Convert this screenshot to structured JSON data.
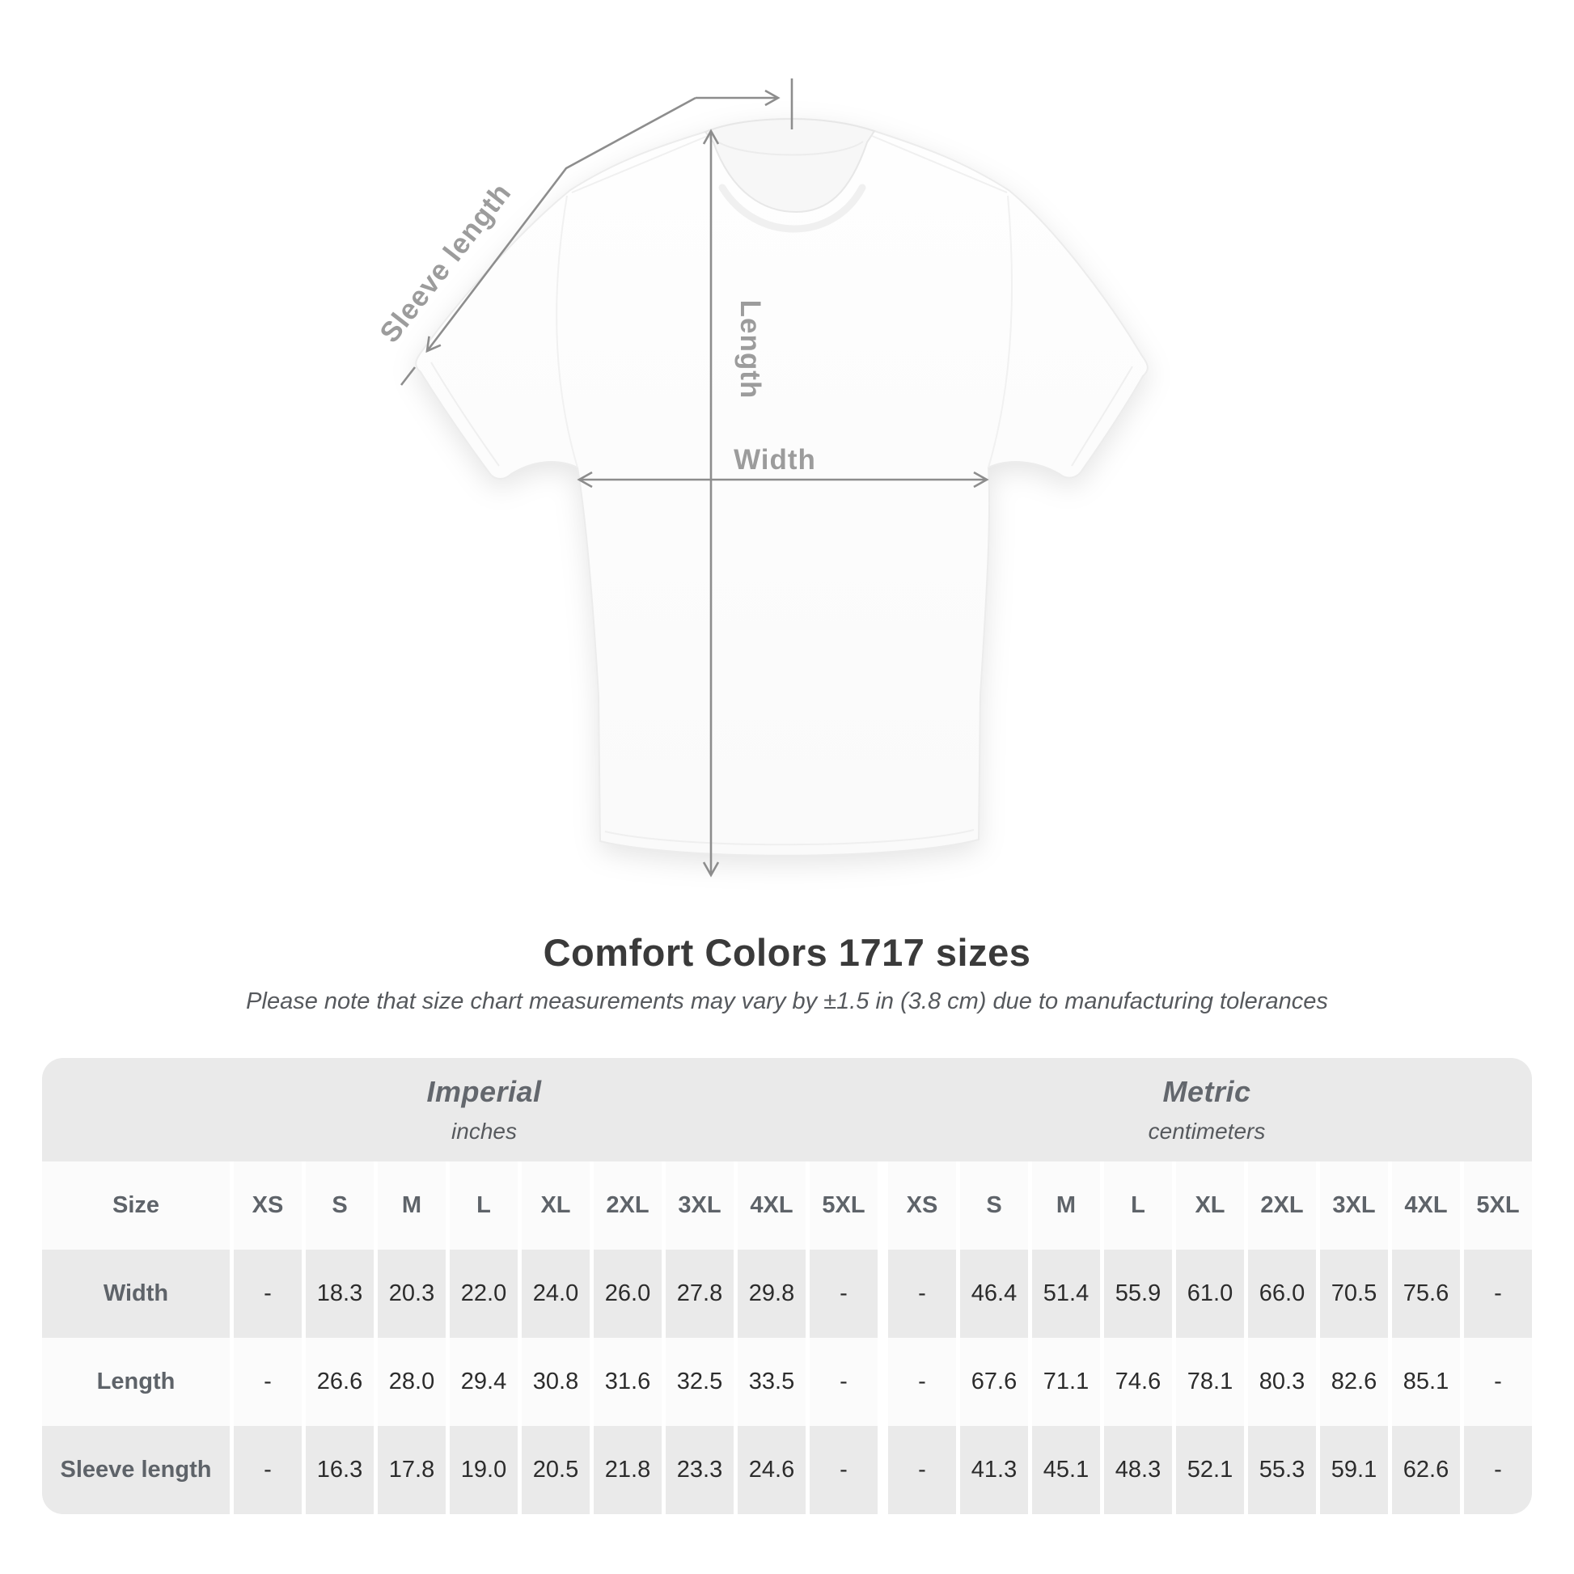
{
  "diagram": {
    "sleeve_length_label": "Sleeve length",
    "length_label": "Length",
    "width_label": "Width",
    "annotation_line_color": "#8d8d8d",
    "annotation_text_color": "#9c9c9c"
  },
  "header": {
    "title": "Comfort Colors 1717 sizes",
    "subtitle": "Please note that size chart measurements may vary by ±1.5 in (3.8 cm) due to manufacturing tolerances"
  },
  "table": {
    "groups": [
      {
        "label": "Imperial",
        "sublabel": "inches"
      },
      {
        "label": "Metric",
        "sublabel": "centimeters"
      }
    ],
    "size_header": "Size",
    "sizes": [
      "XS",
      "S",
      "M",
      "L",
      "XL",
      "2XL",
      "3XL",
      "4XL",
      "5XL"
    ],
    "rows": [
      {
        "label": "Width",
        "imperial": [
          "-",
          "18.3",
          "20.3",
          "22.0",
          "24.0",
          "26.0",
          "27.8",
          "29.8",
          "-"
        ],
        "metric": [
          "-",
          "46.4",
          "51.4",
          "55.9",
          "61.0",
          "66.0",
          "70.5",
          "75.6",
          "-"
        ]
      },
      {
        "label": "Length",
        "imperial": [
          "-",
          "26.6",
          "28.0",
          "29.4",
          "30.8",
          "31.6",
          "32.5",
          "33.5",
          "-"
        ],
        "metric": [
          "-",
          "67.6",
          "71.1",
          "74.6",
          "78.1",
          "80.3",
          "82.6",
          "85.1",
          "-"
        ]
      },
      {
        "label": "Sleeve length",
        "imperial": [
          "-",
          "16.3",
          "17.8",
          "19.0",
          "20.5",
          "21.8",
          "23.3",
          "24.6",
          "-"
        ],
        "metric": [
          "-",
          "41.3",
          "45.1",
          "48.3",
          "52.1",
          "55.3",
          "59.1",
          "62.6",
          "-"
        ]
      }
    ]
  },
  "chart_data": {
    "type": "table",
    "title": "Comfort Colors 1717 sizes",
    "note": "Measurements may vary by ±1.5 in (3.8 cm) due to manufacturing tolerances",
    "column_groups": [
      "Imperial (inches)",
      "Metric (centimeters)"
    ],
    "sizes": [
      "XS",
      "S",
      "M",
      "L",
      "XL",
      "2XL",
      "3XL",
      "4XL",
      "5XL"
    ],
    "measurements": [
      {
        "name": "Width",
        "imperial_in": [
          null,
          18.3,
          20.3,
          22.0,
          24.0,
          26.0,
          27.8,
          29.8,
          null
        ],
        "metric_cm": [
          null,
          46.4,
          51.4,
          55.9,
          61.0,
          66.0,
          70.5,
          75.6,
          null
        ]
      },
      {
        "name": "Length",
        "imperial_in": [
          null,
          26.6,
          28.0,
          29.4,
          30.8,
          31.6,
          32.5,
          33.5,
          null
        ],
        "metric_cm": [
          null,
          67.6,
          71.1,
          74.6,
          78.1,
          80.3,
          82.6,
          85.1,
          null
        ]
      },
      {
        "name": "Sleeve length",
        "imperial_in": [
          null,
          16.3,
          17.8,
          19.0,
          20.5,
          21.8,
          23.3,
          24.6,
          null
        ],
        "metric_cm": [
          null,
          41.3,
          45.1,
          48.3,
          52.1,
          55.3,
          59.1,
          62.6,
          null
        ]
      }
    ]
  }
}
